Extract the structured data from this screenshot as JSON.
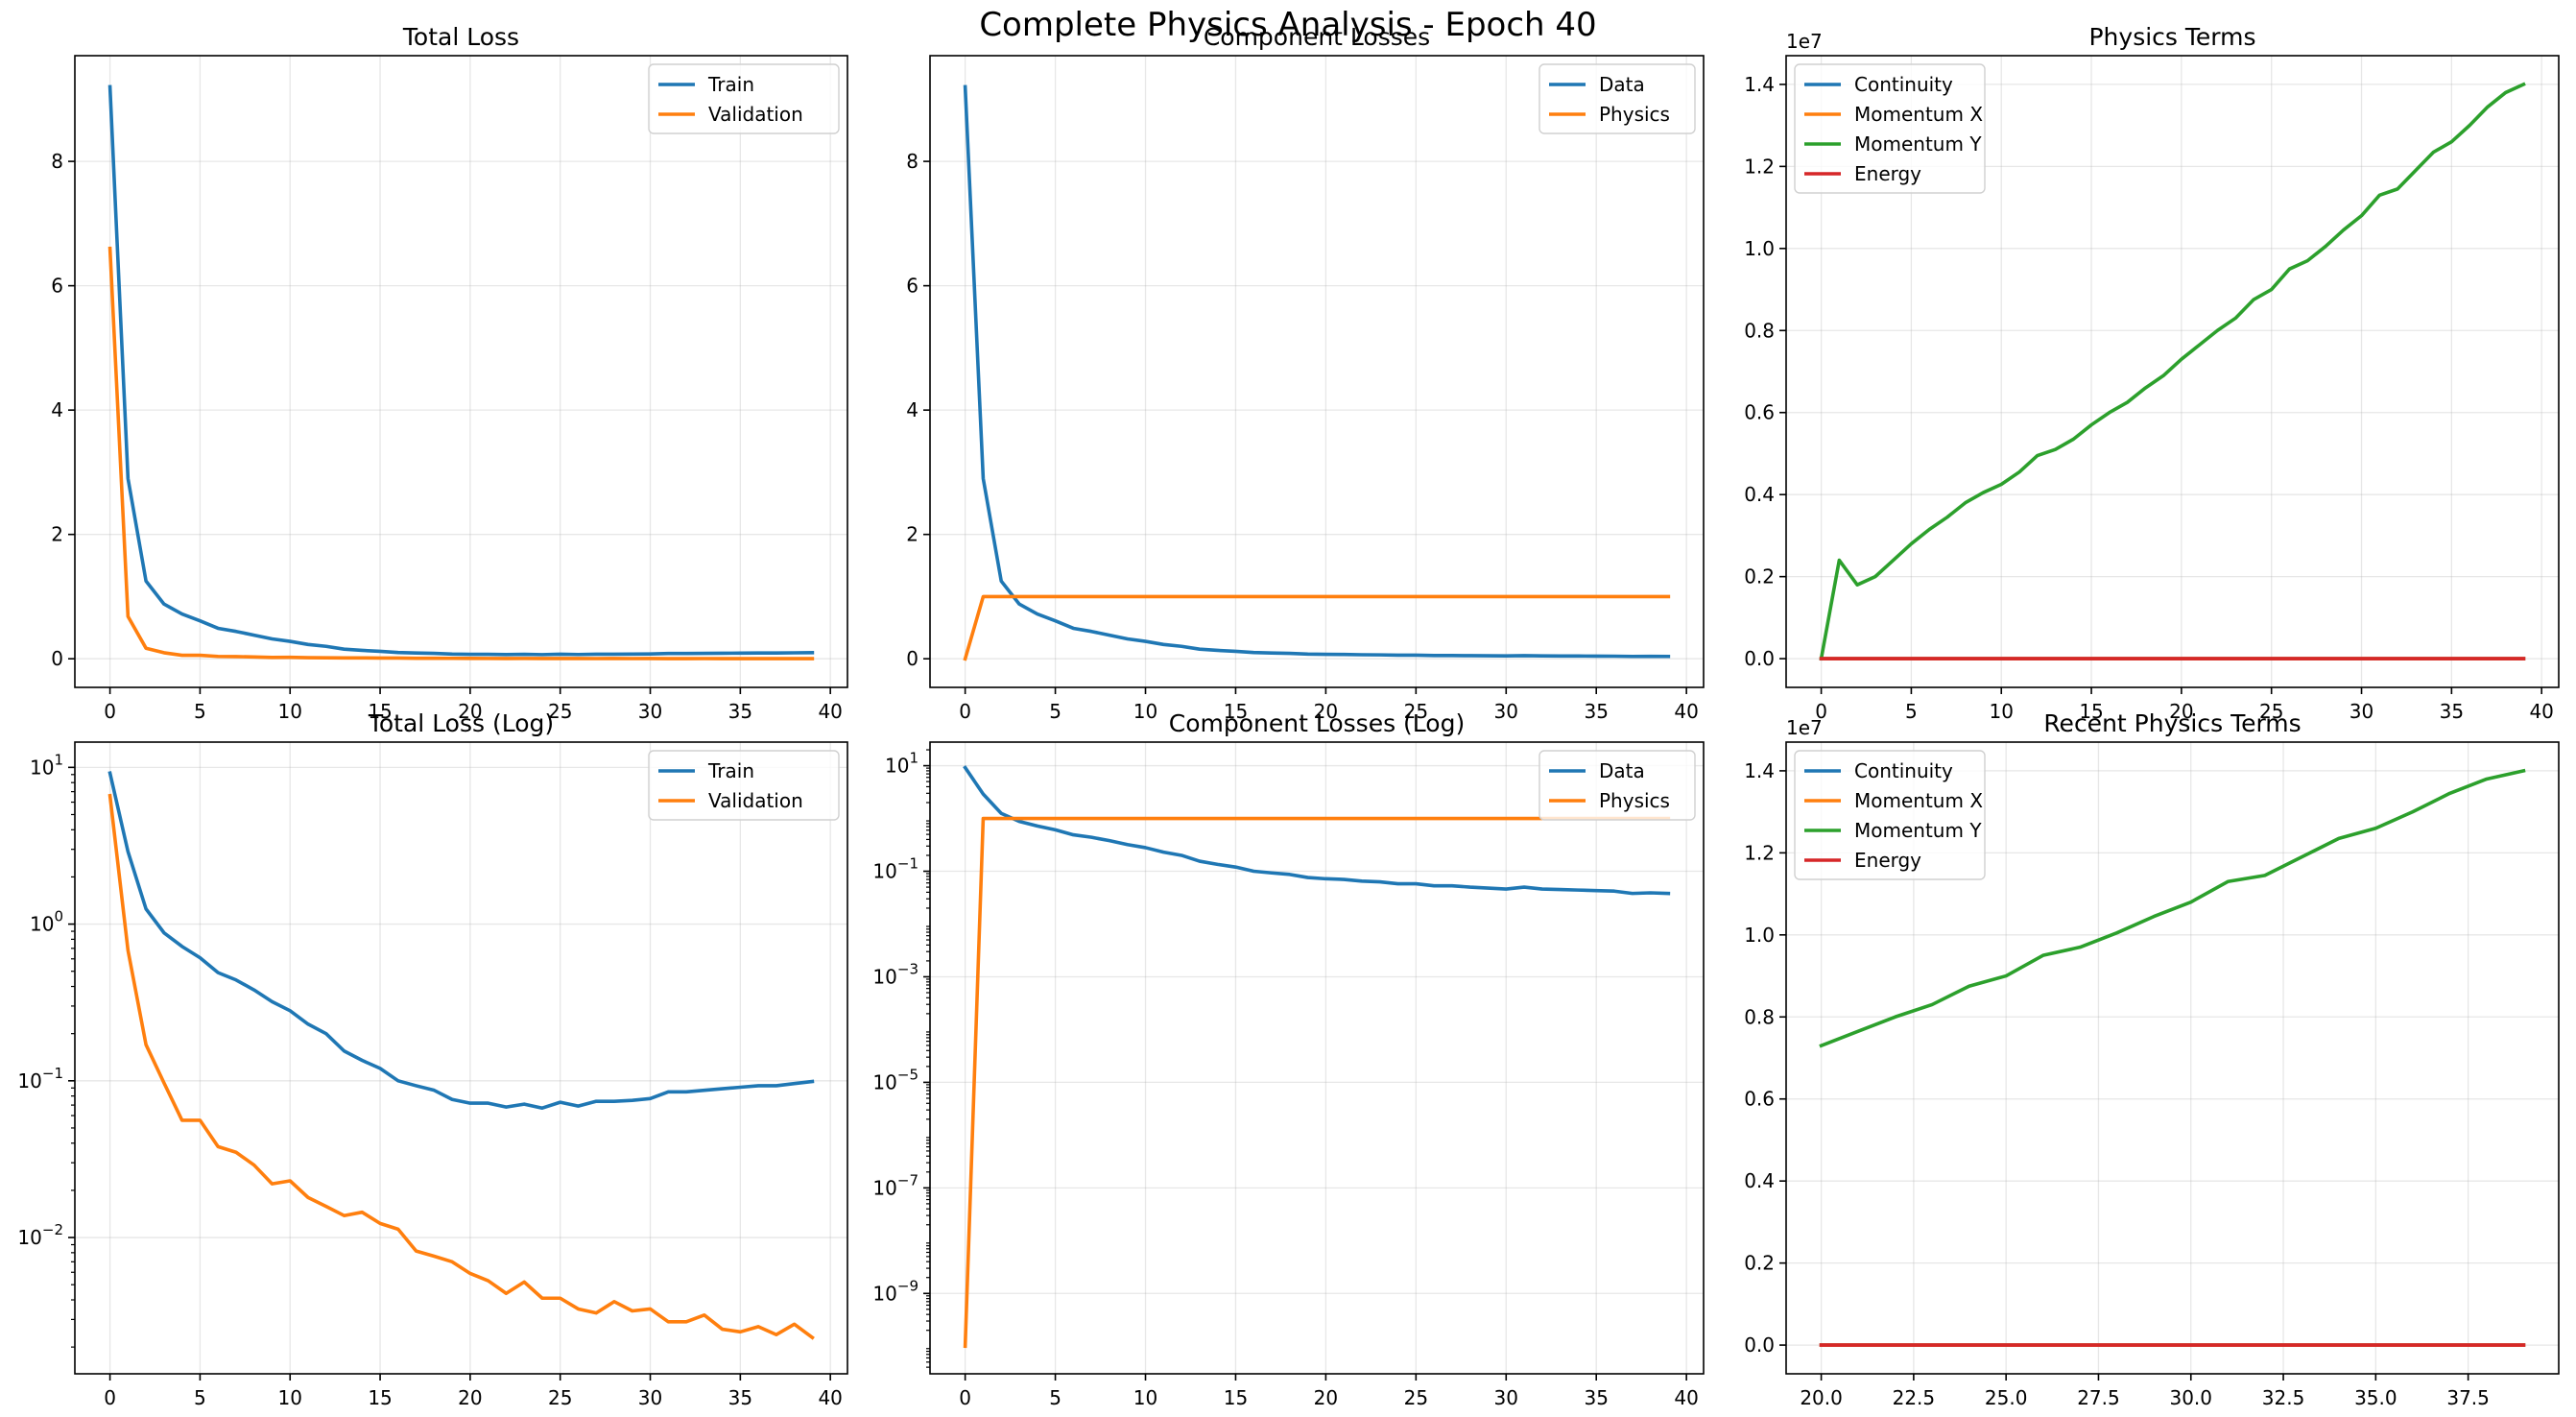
{
  "figure_title": "Complete Physics Analysis - Epoch 40",
  "colors": {
    "blue": "#1f77b4",
    "orange": "#ff7f0e",
    "green": "#2ca02c",
    "red": "#d62728"
  },
  "chart_data": [
    {
      "type": "line",
      "title": "Total Loss",
      "xlabel": "",
      "ylabel": "",
      "scale": "linear",
      "xlim": [
        -1.95,
        40.95
      ],
      "ylim": [
        -0.46,
        9.7
      ],
      "xticks": [
        0,
        5,
        10,
        15,
        20,
        25,
        30,
        35,
        40
      ],
      "xtick_labels": [
        "0",
        "5",
        "10",
        "15",
        "20",
        "25",
        "30",
        "35",
        "40"
      ],
      "yticks": [
        0,
        2,
        4,
        6,
        8
      ],
      "ytick_labels": [
        "0",
        "2",
        "4",
        "6",
        "8"
      ],
      "legend_loc": "top-right",
      "x": [
        0,
        1,
        2,
        3,
        4,
        5,
        6,
        7,
        8,
        9,
        10,
        11,
        12,
        13,
        14,
        15,
        16,
        17,
        18,
        19,
        20,
        21,
        22,
        23,
        24,
        25,
        26,
        27,
        28,
        29,
        30,
        31,
        32,
        33,
        34,
        35,
        36,
        37,
        38,
        39
      ],
      "series": [
        {
          "name": "Train",
          "color": "#1f77b4",
          "values": [
            9.2,
            2.9,
            1.25,
            0.88,
            0.72,
            0.61,
            0.49,
            0.44,
            0.38,
            0.32,
            0.28,
            0.23,
            0.2,
            0.155,
            0.135,
            0.12,
            0.1,
            0.093,
            0.087,
            0.076,
            0.072,
            0.072,
            0.068,
            0.071,
            0.067,
            0.073,
            0.069,
            0.074,
            0.074,
            0.075,
            0.077,
            0.085,
            0.085,
            0.087,
            0.089,
            0.091,
            0.093,
            0.093,
            0.096,
            0.099
          ]
        },
        {
          "name": "Validation",
          "color": "#ff7f0e",
          "values": [
            6.6,
            0.68,
            0.17,
            0.097,
            0.056,
            0.056,
            0.038,
            0.035,
            0.029,
            0.022,
            0.023,
            0.018,
            0.0158,
            0.0138,
            0.0145,
            0.0123,
            0.0113,
            0.0082,
            0.0076,
            0.007,
            0.0059,
            0.0053,
            0.0044,
            0.0052,
            0.0041,
            0.0041,
            0.0035,
            0.0033,
            0.0039,
            0.0034,
            0.0035,
            0.0029,
            0.0029,
            0.0032,
            0.0026,
            0.0025,
            0.0027,
            0.0024,
            0.0028,
            0.0023
          ]
        }
      ]
    },
    {
      "type": "line",
      "title": "Component Losses",
      "xlabel": "",
      "ylabel": "",
      "scale": "linear",
      "xlim": [
        -1.95,
        40.95
      ],
      "ylim": [
        -0.46,
        9.7
      ],
      "xticks": [
        0,
        5,
        10,
        15,
        20,
        25,
        30,
        35,
        40
      ],
      "xtick_labels": [
        "0",
        "5",
        "10",
        "15",
        "20",
        "25",
        "30",
        "35",
        "40"
      ],
      "yticks": [
        0,
        2,
        4,
        6,
        8
      ],
      "ytick_labels": [
        "0",
        "2",
        "4",
        "6",
        "8"
      ],
      "legend_loc": "top-right",
      "x": [
        0,
        1,
        2,
        3,
        4,
        5,
        6,
        7,
        8,
        9,
        10,
        11,
        12,
        13,
        14,
        15,
        16,
        17,
        18,
        19,
        20,
        21,
        22,
        23,
        24,
        25,
        26,
        27,
        28,
        29,
        30,
        31,
        32,
        33,
        34,
        35,
        36,
        37,
        38,
        39
      ],
      "series": [
        {
          "name": "Data",
          "color": "#1f77b4",
          "values": [
            9.2,
            2.9,
            1.25,
            0.88,
            0.72,
            0.61,
            0.49,
            0.44,
            0.38,
            0.32,
            0.28,
            0.23,
            0.2,
            0.155,
            0.135,
            0.12,
            0.1,
            0.093,
            0.087,
            0.076,
            0.072,
            0.07,
            0.065,
            0.063,
            0.058,
            0.058,
            0.053,
            0.053,
            0.05,
            0.048,
            0.046,
            0.05,
            0.046,
            0.045,
            0.044,
            0.043,
            0.042,
            0.038,
            0.039,
            0.038
          ]
        },
        {
          "name": "Physics",
          "color": "#ff7f0e",
          "values": [
            1e-10,
            1,
            1,
            1,
            1,
            1,
            1,
            1,
            1,
            1,
            1,
            1,
            1,
            1,
            1,
            1,
            1,
            1,
            1,
            1,
            1,
            1,
            1,
            1,
            1,
            1,
            1,
            1,
            1,
            1,
            1,
            1,
            1,
            1,
            1,
            1,
            1,
            1,
            1,
            1
          ]
        }
      ]
    },
    {
      "type": "line",
      "title": "Physics Terms",
      "xlabel": "",
      "ylabel": "",
      "scale": "linear",
      "offset_label": "1e7",
      "xlim": [
        -1.95,
        40.95
      ],
      "ylim": [
        -0.07,
        1.47
      ],
      "xticks": [
        0,
        5,
        10,
        15,
        20,
        25,
        30,
        35,
        40
      ],
      "xtick_labels": [
        "0",
        "5",
        "10",
        "15",
        "20",
        "25",
        "30",
        "35",
        "40"
      ],
      "yticks": [
        0,
        0.2,
        0.4,
        0.6,
        0.8,
        1.0,
        1.2,
        1.4
      ],
      "ytick_labels": [
        "0.0",
        "0.2",
        "0.4",
        "0.6",
        "0.8",
        "1.0",
        "1.2",
        "1.4"
      ],
      "legend_loc": "top-left",
      "x": [
        0,
        1,
        2,
        3,
        4,
        5,
        6,
        7,
        8,
        9,
        10,
        11,
        12,
        13,
        14,
        15,
        16,
        17,
        18,
        19,
        20,
        21,
        22,
        23,
        24,
        25,
        26,
        27,
        28,
        29,
        30,
        31,
        32,
        33,
        34,
        35,
        36,
        37,
        38,
        39
      ],
      "series": [
        {
          "name": "Continuity",
          "color": "#1f77b4",
          "values": [
            0,
            0,
            0,
            0,
            0,
            0,
            0,
            0,
            0,
            0,
            0,
            0,
            0,
            0,
            0,
            0,
            0,
            0,
            0,
            0,
            0,
            0,
            0,
            0,
            0,
            0,
            0,
            0,
            0,
            0,
            0,
            0,
            0,
            0,
            0,
            0,
            0,
            0,
            0,
            0
          ]
        },
        {
          "name": "Momentum X",
          "color": "#ff7f0e",
          "values": [
            0,
            0,
            0,
            0,
            0,
            0,
            0,
            0,
            0,
            0,
            0,
            0,
            0,
            0,
            0,
            0,
            0,
            0,
            0,
            0,
            0,
            0,
            0,
            0,
            0,
            0,
            0,
            0,
            0,
            0,
            0,
            0,
            0,
            0,
            0,
            0,
            0,
            0,
            0,
            0
          ]
        },
        {
          "name": "Momentum Y",
          "color": "#2ca02c",
          "values": [
            0,
            0.24,
            0.18,
            0.2,
            0.24,
            0.28,
            0.315,
            0.345,
            0.38,
            0.405,
            0.425,
            0.455,
            0.495,
            0.51,
            0.535,
            0.57,
            0.6,
            0.625,
            0.66,
            0.69,
            0.73,
            0.765,
            0.8,
            0.83,
            0.875,
            0.9,
            0.95,
            0.97,
            1.005,
            1.045,
            1.08,
            1.13,
            1.145,
            1.19,
            1.235,
            1.26,
            1.3,
            1.345,
            1.38,
            1.4
          ]
        },
        {
          "name": "Energy",
          "color": "#d62728",
          "values": [
            0,
            0,
            0,
            0,
            0,
            0,
            0,
            0,
            0,
            0,
            0,
            0,
            0,
            0,
            0,
            0,
            0,
            0,
            0,
            0,
            0,
            0,
            0,
            0,
            0,
            0,
            0,
            0,
            0,
            0,
            0,
            0,
            0,
            0,
            0,
            0,
            0,
            0,
            0,
            0
          ]
        }
      ]
    },
    {
      "type": "line",
      "title": "Total Loss (Log)",
      "xlabel": "",
      "ylabel": "",
      "scale": "log",
      "xlim": [
        -1.95,
        40.95
      ],
      "ylim": [
        0.00135,
        14.5
      ],
      "xticks": [
        0,
        5,
        10,
        15,
        20,
        25,
        30,
        35,
        40
      ],
      "xtick_labels": [
        "0",
        "5",
        "10",
        "15",
        "20",
        "25",
        "30",
        "35",
        "40"
      ],
      "yticks_exp": [
        -2,
        -1,
        0,
        1
      ],
      "ytick_base": "10",
      "legend_loc": "top-right",
      "x": [
        0,
        1,
        2,
        3,
        4,
        5,
        6,
        7,
        8,
        9,
        10,
        11,
        12,
        13,
        14,
        15,
        16,
        17,
        18,
        19,
        20,
        21,
        22,
        23,
        24,
        25,
        26,
        27,
        28,
        29,
        30,
        31,
        32,
        33,
        34,
        35,
        36,
        37,
        38,
        39
      ],
      "series": [
        {
          "name": "Train",
          "color": "#1f77b4",
          "values": [
            9.2,
            2.9,
            1.25,
            0.88,
            0.72,
            0.61,
            0.49,
            0.44,
            0.38,
            0.32,
            0.28,
            0.23,
            0.2,
            0.155,
            0.135,
            0.12,
            0.1,
            0.093,
            0.087,
            0.076,
            0.072,
            0.072,
            0.068,
            0.071,
            0.067,
            0.073,
            0.069,
            0.074,
            0.074,
            0.075,
            0.077,
            0.085,
            0.085,
            0.087,
            0.089,
            0.091,
            0.093,
            0.093,
            0.096,
            0.099
          ]
        },
        {
          "name": "Validation",
          "color": "#ff7f0e",
          "values": [
            6.6,
            0.68,
            0.17,
            0.097,
            0.056,
            0.056,
            0.038,
            0.035,
            0.029,
            0.022,
            0.023,
            0.018,
            0.0158,
            0.0138,
            0.0145,
            0.0123,
            0.0113,
            0.0082,
            0.0076,
            0.007,
            0.0059,
            0.0053,
            0.0044,
            0.0052,
            0.0041,
            0.0041,
            0.0035,
            0.0033,
            0.0039,
            0.0034,
            0.0035,
            0.0029,
            0.0029,
            0.0032,
            0.0026,
            0.0025,
            0.0027,
            0.0024,
            0.0028,
            0.0023
          ]
        }
      ]
    },
    {
      "type": "line",
      "title": "Component Losses (Log)",
      "xlabel": "",
      "ylabel": "",
      "scale": "log",
      "xlim": [
        -1.95,
        40.95
      ],
      "ylim": [
        3e-11,
        28
      ],
      "xticks": [
        0,
        5,
        10,
        15,
        20,
        25,
        30,
        35,
        40
      ],
      "xtick_labels": [
        "0",
        "5",
        "10",
        "15",
        "20",
        "25",
        "30",
        "35",
        "40"
      ],
      "yticks_exp": [
        -9,
        -7,
        -5,
        -3,
        -1,
        1
      ],
      "ytick_base": "10",
      "legend_loc": "top-right",
      "x": [
        0,
        1,
        2,
        3,
        4,
        5,
        6,
        7,
        8,
        9,
        10,
        11,
        12,
        13,
        14,
        15,
        16,
        17,
        18,
        19,
        20,
        21,
        22,
        23,
        24,
        25,
        26,
        27,
        28,
        29,
        30,
        31,
        32,
        33,
        34,
        35,
        36,
        37,
        38,
        39
      ],
      "series": [
        {
          "name": "Data",
          "color": "#1f77b4",
          "values": [
            9.2,
            2.9,
            1.25,
            0.88,
            0.72,
            0.61,
            0.49,
            0.44,
            0.38,
            0.32,
            0.28,
            0.23,
            0.2,
            0.155,
            0.135,
            0.12,
            0.1,
            0.093,
            0.087,
            0.076,
            0.072,
            0.07,
            0.065,
            0.063,
            0.058,
            0.058,
            0.053,
            0.053,
            0.05,
            0.048,
            0.046,
            0.05,
            0.046,
            0.045,
            0.044,
            0.043,
            0.042,
            0.038,
            0.039,
            0.038
          ]
        },
        {
          "name": "Physics",
          "color": "#ff7f0e",
          "values": [
            1e-10,
            1,
            1,
            1,
            1,
            1,
            1,
            1,
            1,
            1,
            1,
            1,
            1,
            1,
            1,
            1,
            1,
            1,
            1,
            1,
            1,
            1,
            1,
            1,
            1,
            1,
            1,
            1,
            1,
            1,
            1,
            1,
            1,
            1,
            1,
            1,
            1,
            1,
            1,
            1
          ]
        }
      ]
    },
    {
      "type": "line",
      "title": "Recent Physics Terms",
      "xlabel": "",
      "ylabel": "",
      "scale": "linear",
      "offset_label": "1e7",
      "xlim": [
        19.05,
        39.95
      ],
      "ylim": [
        -0.07,
        1.47
      ],
      "xticks": [
        20,
        22.5,
        25,
        27.5,
        30,
        32.5,
        35,
        37.5
      ],
      "xtick_labels": [
        "20.0",
        "22.5",
        "25.0",
        "27.5",
        "30.0",
        "32.5",
        "35.0",
        "37.5"
      ],
      "yticks": [
        0,
        0.2,
        0.4,
        0.6,
        0.8,
        1.0,
        1.2,
        1.4
      ],
      "ytick_labels": [
        "0.0",
        "0.2",
        "0.4",
        "0.6",
        "0.8",
        "1.0",
        "1.2",
        "1.4"
      ],
      "legend_loc": "top-left",
      "x": [
        20,
        21,
        22,
        23,
        24,
        25,
        26,
        27,
        28,
        29,
        30,
        31,
        32,
        33,
        34,
        35,
        36,
        37,
        38,
        39
      ],
      "series": [
        {
          "name": "Continuity",
          "color": "#1f77b4",
          "values": [
            0,
            0,
            0,
            0,
            0,
            0,
            0,
            0,
            0,
            0,
            0,
            0,
            0,
            0,
            0,
            0,
            0,
            0,
            0,
            0
          ]
        },
        {
          "name": "Momentum X",
          "color": "#ff7f0e",
          "values": [
            0,
            0,
            0,
            0,
            0,
            0,
            0,
            0,
            0,
            0,
            0,
            0,
            0,
            0,
            0,
            0,
            0,
            0,
            0,
            0
          ]
        },
        {
          "name": "Momentum Y",
          "color": "#2ca02c",
          "values": [
            0.73,
            0.765,
            0.8,
            0.83,
            0.875,
            0.9,
            0.95,
            0.97,
            1.005,
            1.045,
            1.08,
            1.13,
            1.145,
            1.19,
            1.235,
            1.26,
            1.3,
            1.345,
            1.38,
            1.4
          ]
        },
        {
          "name": "Energy",
          "color": "#d62728",
          "values": [
            0,
            0,
            0,
            0,
            0,
            0,
            0,
            0,
            0,
            0,
            0,
            0,
            0,
            0,
            0,
            0,
            0,
            0,
            0,
            0
          ]
        }
      ]
    }
  ]
}
